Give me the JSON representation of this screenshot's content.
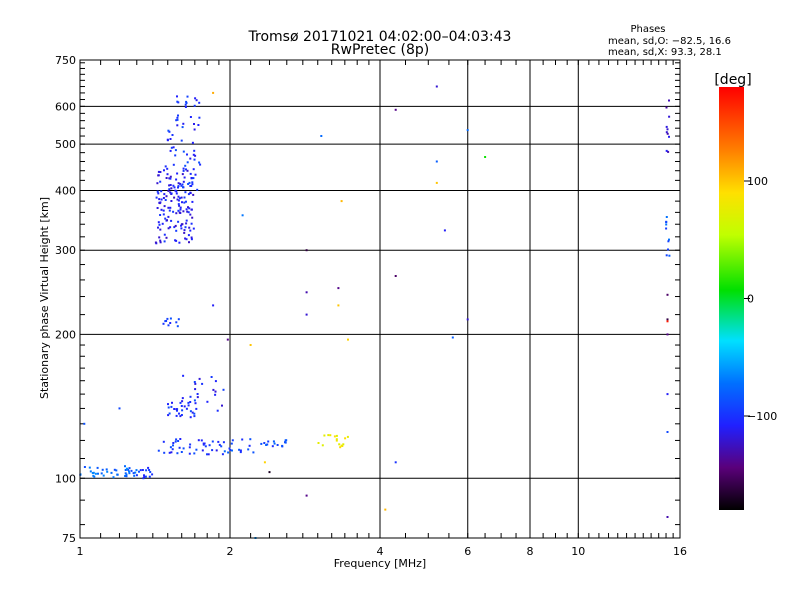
{
  "chart_data": {
    "type": "scatter",
    "title": "Tromsø 20171021 04:02:00–04:03:43",
    "subtitle": "RwPretec (8p)",
    "stats_title": "Phases",
    "stats_lines": [
      "mean, sd,O: −82.5, 16.6",
      "mean, sd,X:  93.3, 28.1"
    ],
    "xlabel": "Frequency [MHz]",
    "ylabel": "Stationary phase Virtual Height [km]",
    "x_scale": "log",
    "y_scale": "log",
    "xlim": [
      1,
      16
    ],
    "ylim": [
      75,
      750
    ],
    "x_ticks": [
      1,
      2,
      4,
      6,
      8,
      10,
      16
    ],
    "x_tick_labels": [
      "1",
      "2",
      "4",
      "6",
      "8",
      "10",
      "16"
    ],
    "y_ticks": [
      75,
      100,
      200,
      300,
      400,
      500,
      600,
      750
    ],
    "y_tick_labels": [
      "75",
      "100",
      "200",
      "300",
      "400",
      "500",
      "600",
      "750"
    ],
    "grid": true,
    "colorbar": {
      "label": "[deg]",
      "range": [
        -180,
        180
      ],
      "ticks": [
        100,
        0,
        -100
      ],
      "tick_labels": [
        "100",
        "0",
        "−100"
      ]
    },
    "series": [
      {
        "clusters": [
          {
            "x": [
              1.0,
              1.3
            ],
            "y": [
              100,
              106
            ],
            "phase": -75,
            "n": 40
          },
          {
            "x": [
              1.3,
              1.42
            ],
            "y": [
              100,
              106
            ],
            "phase": -100,
            "n": 14
          },
          {
            "x": [
              1.42,
              1.95
            ],
            "y": [
              112,
              121
            ],
            "phase": -100,
            "n": 40
          },
          {
            "x": [
              1.95,
              2.6
            ],
            "y": [
              113,
              122
            ],
            "phase": -90,
            "n": 30
          },
          {
            "x": [
              1.5,
              1.72
            ],
            "y": [
              134,
              146
            ],
            "phase": -100,
            "n": 30
          },
          {
            "x": [
              1.6,
              1.95
            ],
            "y": [
              138,
              165
            ],
            "phase": -105,
            "n": 20
          },
          {
            "x": [
              3.0,
              3.45
            ],
            "y": [
              116,
              124
            ],
            "phase": 80,
            "n": 16
          },
          {
            "x": [
              1.47,
              1.58
            ],
            "y": [
              208,
              216
            ],
            "phase": -100,
            "n": 10
          },
          {
            "x": [
              1.42,
              1.7
            ],
            "y": [
              310,
              450
            ],
            "phase": -110,
            "n": 150
          },
          {
            "x": [
              1.5,
              1.75
            ],
            "y": [
              400,
              640
            ],
            "phase": -100,
            "n": 60
          },
          {
            "x": [
              15.0,
              15.25
            ],
            "y": [
              290,
              360
            ],
            "phase": -80,
            "n": 10
          },
          {
            "x": [
              15.0,
              15.25
            ],
            "y": [
              480,
              620
            ],
            "phase": -120,
            "n": 10
          }
        ]
      },
      {
        "points": [
          {
            "x": 1.02,
            "y": 130,
            "phase": -85
          },
          {
            "x": 1.2,
            "y": 140,
            "phase": -90
          },
          {
            "x": 1.85,
            "y": 640,
            "phase": 110
          },
          {
            "x": 1.85,
            "y": 230,
            "phase": -110
          },
          {
            "x": 1.98,
            "y": 195,
            "phase": -140
          },
          {
            "x": 2.12,
            "y": 355,
            "phase": -70
          },
          {
            "x": 2.2,
            "y": 190,
            "phase": 100
          },
          {
            "x": 2.25,
            "y": 75,
            "phase": -60
          },
          {
            "x": 2.4,
            "y": 103,
            "phase": -170
          },
          {
            "x": 2.35,
            "y": 108,
            "phase": 95
          },
          {
            "x": 2.85,
            "y": 92,
            "phase": -140
          },
          {
            "x": 2.85,
            "y": 300,
            "phase": -160
          },
          {
            "x": 2.85,
            "y": 245,
            "phase": -130
          },
          {
            "x": 2.85,
            "y": 220,
            "phase": -120
          },
          {
            "x": 3.05,
            "y": 520,
            "phase": -75
          },
          {
            "x": 3.3,
            "y": 250,
            "phase": -140
          },
          {
            "x": 3.35,
            "y": 380,
            "phase": 105
          },
          {
            "x": 3.3,
            "y": 230,
            "phase": 100
          },
          {
            "x": 3.45,
            "y": 195,
            "phase": 95
          },
          {
            "x": 4.3,
            "y": 590,
            "phase": -140
          },
          {
            "x": 4.3,
            "y": 265,
            "phase": -150
          },
          {
            "x": 4.3,
            "y": 108,
            "phase": -100
          },
          {
            "x": 4.1,
            "y": 86,
            "phase": 105
          },
          {
            "x": 5.2,
            "y": 660,
            "phase": -120
          },
          {
            "x": 5.2,
            "y": 460,
            "phase": -80
          },
          {
            "x": 5.2,
            "y": 415,
            "phase": 100
          },
          {
            "x": 5.4,
            "y": 330,
            "phase": -110
          },
          {
            "x": 5.6,
            "y": 197,
            "phase": -80
          },
          {
            "x": 6.0,
            "y": 215,
            "phase": -120
          },
          {
            "x": 6.0,
            "y": 535,
            "phase": -75
          },
          {
            "x": 6.5,
            "y": 470,
            "phase": 10
          },
          {
            "x": 15.1,
            "y": 200,
            "phase": -140
          },
          {
            "x": 15.1,
            "y": 215,
            "phase": -160
          },
          {
            "x": 15.1,
            "y": 213,
            "phase": 170
          },
          {
            "x": 15.1,
            "y": 242,
            "phase": -150
          },
          {
            "x": 15.1,
            "y": 150,
            "phase": -110
          },
          {
            "x": 15.1,
            "y": 125,
            "phase": -90
          },
          {
            "x": 15.1,
            "y": 83,
            "phase": -130
          }
        ]
      }
    ]
  }
}
